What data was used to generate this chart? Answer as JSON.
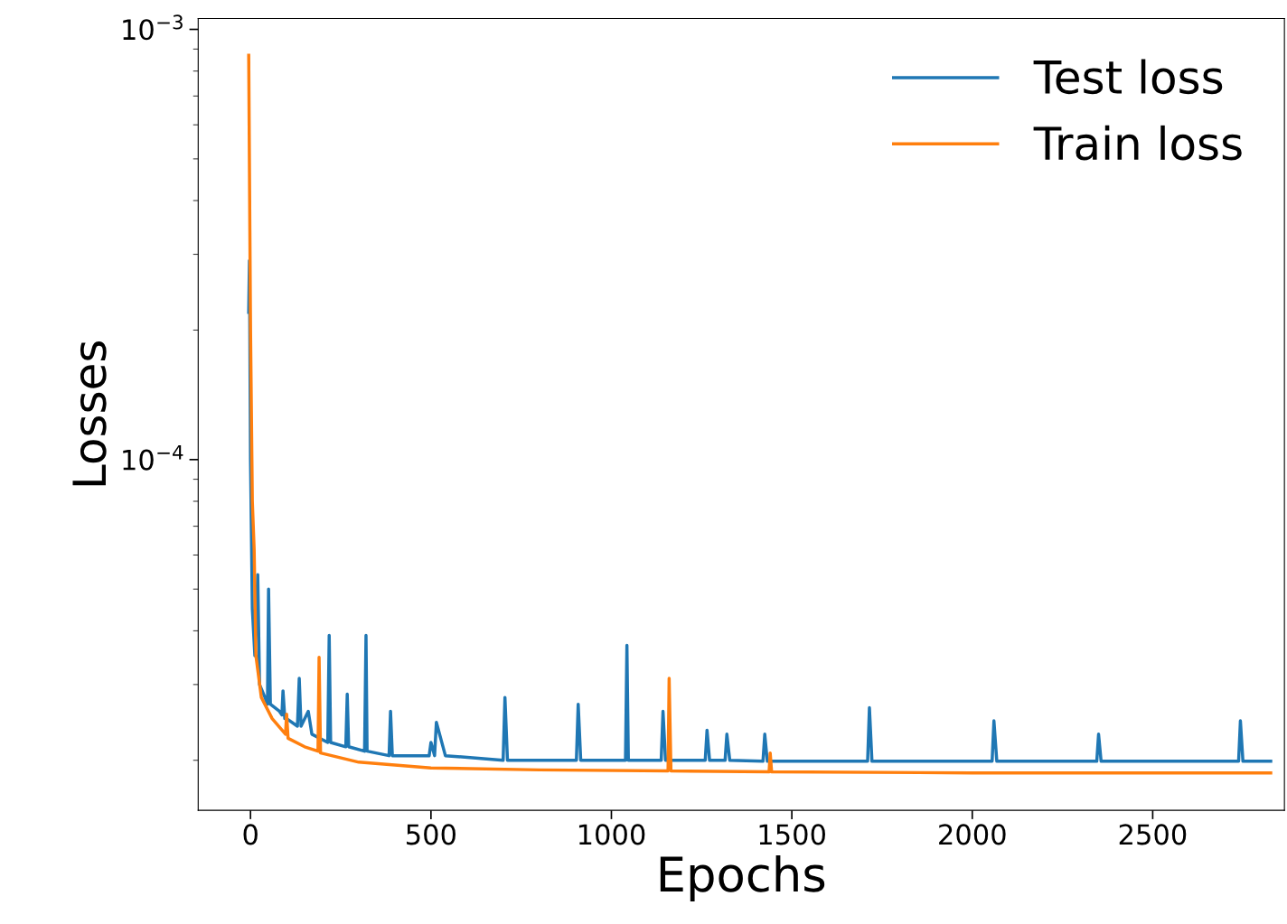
{
  "chart_data": {
    "type": "line",
    "xlabel": "Epochs",
    "ylabel": "Losses",
    "log": "y",
    "xlim": [
      -145,
      2865
    ],
    "xticks": [
      0,
      500,
      1000,
      1500,
      2000,
      2500
    ],
    "ylim": [
      1.53e-05,
      0.00106
    ],
    "yticks": [
      {
        "value": 0.001,
        "label": "10$^{−3}$"
      },
      {
        "value": 0.0001,
        "label": "10$^{−4}$"
      }
    ],
    "legend": "top right",
    "grid": false,
    "line_style": "solid",
    "marker": "none",
    "series": [
      {
        "name": "Test loss",
        "color": "#1f77b4",
        "x": [
          -5,
          -3,
          0,
          5,
          12,
          20,
          25,
          40,
          47,
          50,
          55,
          80,
          87,
          90,
          95,
          100,
          130,
          135,
          140,
          160,
          170,
          214,
          218,
          222,
          264,
          268,
          272,
          316,
          320,
          323,
          384,
          388,
          393,
          495,
          500,
          510,
          515,
          540,
          700,
          705,
          712,
          903,
          908,
          915,
          1039,
          1043,
          1047,
          1138,
          1143,
          1150,
          1260,
          1265,
          1272,
          1315,
          1320,
          1328,
          1420,
          1425,
          1432,
          1710,
          1715,
          1722,
          2055,
          2060,
          2068,
          2345,
          2350,
          2357,
          2738,
          2743,
          2750,
          2827
        ],
        "values": [
          0.00022,
          0.00029,
          0.0001,
          4.5e-05,
          3.5e-05,
          5.4e-05,
          3e-05,
          2.8e-05,
          2.7e-05,
          5e-05,
          2.7e-05,
          2.6e-05,
          2.55e-05,
          2.9e-05,
          2.5e-05,
          2.5e-05,
          2.4e-05,
          3.1e-05,
          2.4e-05,
          2.6e-05,
          2.3e-05,
          2.2e-05,
          3.9e-05,
          2.2e-05,
          2.15e-05,
          2.85e-05,
          2.15e-05,
          2.1e-05,
          3.9e-05,
          2.1e-05,
          2.05e-05,
          2.6e-05,
          2.05e-05,
          2.05e-05,
          2.2e-05,
          2.05e-05,
          2.45e-05,
          2.05e-05,
          2e-05,
          2.8e-05,
          2e-05,
          2e-05,
          2.7e-05,
          2e-05,
          2e-05,
          3.7e-05,
          2e-05,
          2e-05,
          2.6e-05,
          2e-05,
          2e-05,
          2.35e-05,
          2e-05,
          2e-05,
          2.3e-05,
          2e-05,
          1.99e-05,
          2.3e-05,
          1.99e-05,
          1.99e-05,
          2.65e-05,
          1.99e-05,
          1.99e-05,
          2.47e-05,
          1.99e-05,
          1.99e-05,
          2.3e-05,
          1.99e-05,
          1.99e-05,
          2.47e-05,
          1.99e-05,
          1.99e-05
        ]
      },
      {
        "name": "Train loss",
        "color": "#ff7f0e",
        "x": [
          -5,
          0,
          5,
          10,
          15,
          30,
          60,
          97,
          100,
          104,
          150,
          187,
          190,
          194,
          300,
          500,
          800,
          1157,
          1160,
          1165,
          1437,
          1440,
          1444,
          2000,
          2827
        ],
        "values": [
          0.00087,
          0.0002,
          8e-05,
          6.2e-05,
          3.5e-05,
          2.8e-05,
          2.5e-05,
          2.3e-05,
          2.56e-05,
          2.25e-05,
          2.15e-05,
          2.1e-05,
          3.47e-05,
          2.08e-05,
          1.98e-05,
          1.92e-05,
          1.9e-05,
          1.89e-05,
          3.1e-05,
          1.89e-05,
          1.88e-05,
          2.08e-05,
          1.88e-05,
          1.87e-05,
          1.87e-05
        ]
      }
    ]
  }
}
